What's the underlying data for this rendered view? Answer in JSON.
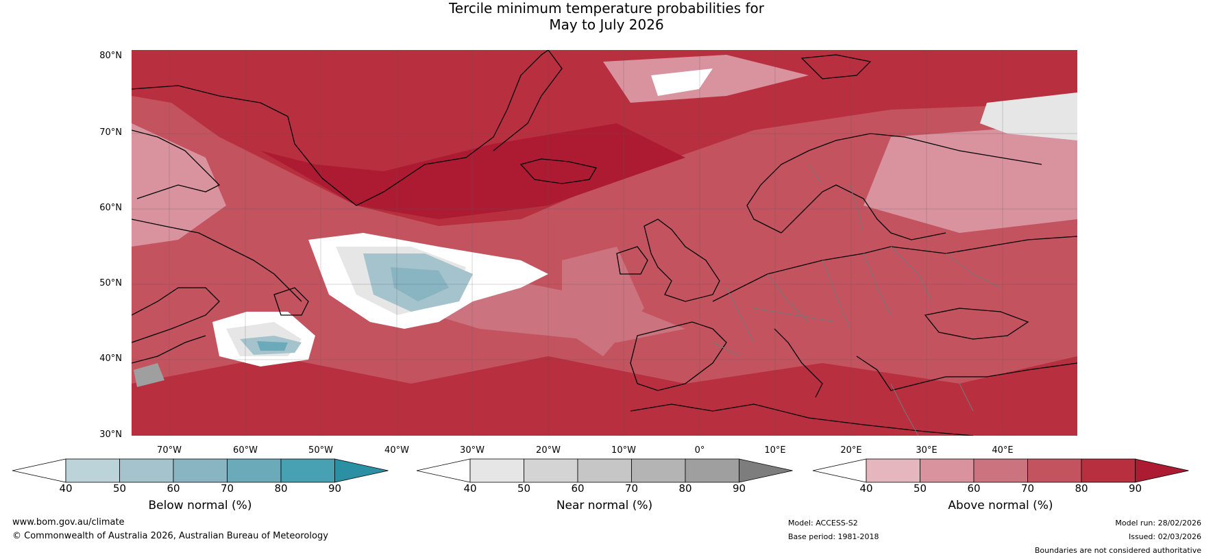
{
  "title_line1": "Tercile minimum temperature probabilities for",
  "title_line2": "May to July 2026",
  "map": {
    "lat_labels": [
      "80°N",
      "70°N",
      "60°N",
      "50°N",
      "40°N",
      "30°N"
    ],
    "lon_labels": [
      "70°W",
      "60°W",
      "50°W",
      "40°W",
      "30°W",
      "20°W",
      "10°W",
      "0°",
      "10°E",
      "20°E",
      "30°E",
      "40°E"
    ]
  },
  "legends": [
    {
      "caption": "Below normal (%)",
      "ticks": [
        "40",
        "50",
        "60",
        "70",
        "80",
        "90"
      ],
      "colors": [
        "#ffffff",
        "#bcd3da",
        "#a5c3cc",
        "#89b4c2",
        "#6aaab9",
        "#47a1b3",
        "#2b90a3"
      ]
    },
    {
      "caption": "Near normal (%)",
      "ticks": [
        "40",
        "50",
        "60",
        "70",
        "80",
        "90"
      ],
      "colors": [
        "#ffffff",
        "#e6e6e6",
        "#d4d4d4",
        "#c6c6c6",
        "#b4b4b4",
        "#9f9f9f",
        "#7d7d7d"
      ]
    },
    {
      "caption": "Above normal (%)",
      "ticks": [
        "40",
        "50",
        "60",
        "70",
        "80",
        "90"
      ],
      "colors": [
        "#ffffff",
        "#e5b6be",
        "#d8939f",
        "#cc7380",
        "#c3535f",
        "#b8303f",
        "#ad1b33"
      ]
    }
  ],
  "footer": {
    "website": "www.bom.gov.au/climate",
    "copyright": "© Commonwealth of Australia 2026, Australian Bureau of Meteorology",
    "model": "Model: ACCESS-S2",
    "base_period": "Base period: 1981-2018",
    "model_run": "Model run: 28/02/2026",
    "issued": "Issued: 02/03/2026",
    "disclaimer": "Boundaries are not considered authoritative"
  }
}
